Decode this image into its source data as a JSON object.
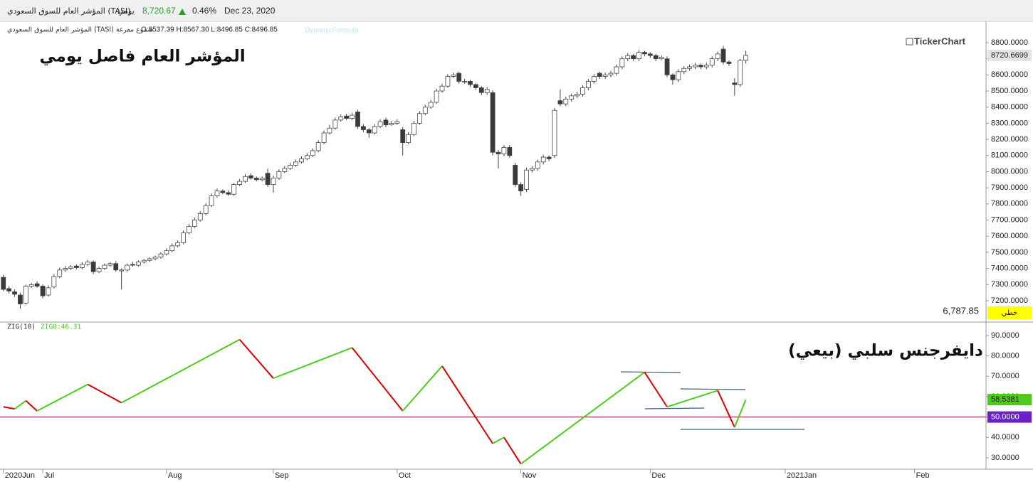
{
  "header": {
    "name": "المؤشر العام للسوق السعودي (TASI)",
    "period": "يومي",
    "price": "8,720.67",
    "change": "0.46%",
    "date": "Dec 23, 2020"
  },
  "legend_line": {
    "name": "المؤشر العام للسوق السعودي (TASI) شموع مفرغة",
    "ohlc": "O:8537.39 H:8567.30 L:8496.85 C:8496.85",
    "formula": "DynamicFormula"
  },
  "logo": "TickerChart",
  "chart_data": [
    {
      "type": "candlestick",
      "title": "المؤشر العام فاصل يومي",
      "min_label": "6,787.85",
      "scale_label": "خطي",
      "up_color": "#ffffff",
      "down_color": "#3a3a3a",
      "open": [
        7345,
        7275,
        7255,
        7235,
        7185,
        7290,
        7305,
        7290,
        7235,
        7285,
        7350,
        7390,
        7400,
        7415,
        7405,
        7425,
        7440,
        7380,
        7400,
        7420,
        7430,
        7385,
        7390,
        7425,
        7420,
        7440,
        7450,
        7460,
        7470,
        7490,
        7510,
        7540,
        7560,
        7620,
        7660,
        7700,
        7740,
        7790,
        7850,
        7880,
        7870,
        7860,
        7920,
        7940,
        7975,
        7960,
        7950,
        7990,
        7920,
        7960,
        8000,
        8020,
        8040,
        8060,
        8080,
        8100,
        8130,
        8180,
        8240,
        8270,
        8320,
        8345,
        8330,
        8370,
        8280,
        8260,
        8240,
        8280,
        8320,
        8290,
        8300,
        8260,
        8180,
        8230,
        8300,
        8360,
        8400,
        8430,
        8500,
        8530,
        8590,
        8610,
        8560,
        8560,
        8540,
        8520,
        8490,
        8490,
        8120,
        8110,
        8150,
        8040,
        7920,
        7890,
        8010,
        8020,
        8060,
        8090,
        8100,
        8440,
        8420,
        8450,
        8470,
        8480,
        8520,
        8560,
        8610,
        8590,
        8600,
        8610,
        8650,
        8700,
        8720,
        8700,
        8740,
        8730,
        8720,
        8700,
        8700,
        8600,
        8570,
        8620,
        8640,
        8650,
        8660,
        8650,
        8660,
        8700,
        8760,
        8680,
        8550,
        8540,
        8690
      ],
      "high": [
        7360,
        7290,
        7270,
        7250,
        7300,
        7310,
        7320,
        7300,
        7295,
        7365,
        7405,
        7415,
        7420,
        7425,
        7440,
        7455,
        7450,
        7410,
        7430,
        7440,
        7445,
        7400,
        7430,
        7440,
        7450,
        7460,
        7470,
        7480,
        7500,
        7525,
        7555,
        7575,
        7635,
        7675,
        7715,
        7755,
        7805,
        7865,
        7895,
        7890,
        7885,
        7930,
        7955,
        7985,
        7990,
        7970,
        7970,
        8020,
        7975,
        8015,
        8035,
        8055,
        8075,
        8095,
        8115,
        8145,
        8195,
        8255,
        8290,
        8335,
        8355,
        8360,
        8365,
        8385,
        8295,
        8270,
        8295,
        8325,
        8335,
        8315,
        8325,
        8275,
        8245,
        8315,
        8375,
        8415,
        8445,
        8515,
        8545,
        8605,
        8615,
        8620,
        8575,
        8570,
        8550,
        8530,
        8525,
        8505,
        8135,
        8165,
        8165,
        8055,
        7935,
        8025,
        8035,
        8075,
        8105,
        8100,
        8395,
        8510,
        8465,
        8485,
        8495,
        8535,
        8575,
        8605,
        8620,
        8615,
        8625,
        8665,
        8715,
        8735,
        8730,
        8755,
        8750,
        8740,
        8730,
        8720,
        8715,
        8610,
        8635,
        8655,
        8665,
        8675,
        8670,
        8675,
        8715,
        8745,
        8780,
        8690,
        8580,
        8700,
        8750
      ],
      "low": [
        7260,
        7245,
        7225,
        7150,
        7175,
        7280,
        7280,
        7215,
        7225,
        7275,
        7340,
        7380,
        7390,
        7395,
        7395,
        7415,
        7365,
        7370,
        7390,
        7410,
        7380,
        7270,
        7380,
        7410,
        7410,
        7430,
        7440,
        7450,
        7460,
        7480,
        7500,
        7530,
        7550,
        7610,
        7650,
        7690,
        7730,
        7780,
        7840,
        7860,
        7850,
        7850,
        7910,
        7930,
        7950,
        7940,
        7940,
        7905,
        7870,
        7950,
        7990,
        8010,
        8030,
        8050,
        8070,
        8090,
        8120,
        8170,
        8230,
        8260,
        8310,
        8320,
        8320,
        8265,
        8245,
        8210,
        8230,
        8270,
        8275,
        8285,
        8290,
        8100,
        8170,
        8220,
        8290,
        8350,
        8390,
        8420,
        8490,
        8520,
        8580,
        8545,
        8545,
        8525,
        8505,
        8475,
        8475,
        8100,
        8020,
        8095,
        8085,
        7905,
        7850,
        7875,
        7995,
        8005,
        8045,
        8065,
        8085,
        8405,
        8405,
        8435,
        8455,
        8465,
        8505,
        8545,
        8575,
        8575,
        8585,
        8595,
        8635,
        8685,
        8685,
        8685,
        8715,
        8705,
        8685,
        8690,
        8585,
        8540,
        8555,
        8605,
        8625,
        8635,
        8635,
        8635,
        8645,
        8685,
        8665,
        8655,
        8470,
        8525,
        8670
      ],
      "close": [
        7270,
        7260,
        7240,
        7180,
        7290,
        7300,
        7290,
        7230,
        7280,
        7350,
        7390,
        7400,
        7410,
        7405,
        7425,
        7440,
        7380,
        7400,
        7420,
        7430,
        7390,
        7390,
        7420,
        7420,
        7440,
        7450,
        7460,
        7470,
        7490,
        7510,
        7540,
        7560,
        7620,
        7660,
        7700,
        7740,
        7790,
        7850,
        7880,
        7870,
        7860,
        7920,
        7940,
        7970,
        7960,
        7950,
        7960,
        7920,
        7960,
        8000,
        8020,
        8040,
        8060,
        8080,
        8100,
        8130,
        8180,
        8240,
        8270,
        8320,
        8340,
        8330,
        8350,
        8280,
        8260,
        8240,
        8280,
        8310,
        8290,
        8300,
        8310,
        8180,
        8230,
        8300,
        8360,
        8400,
        8430,
        8500,
        8530,
        8590,
        8600,
        8560,
        8560,
        8540,
        8520,
        8490,
        8510,
        8120,
        8110,
        8150,
        8100,
        7920,
        7880,
        8010,
        8020,
        8060,
        8090,
        8080,
        8380,
        8420,
        8450,
        8470,
        8480,
        8520,
        8560,
        8590,
        8590,
        8600,
        8610,
        8650,
        8700,
        8720,
        8700,
        8740,
        8730,
        8720,
        8700,
        8710,
        8600,
        8570,
        8620,
        8640,
        8650,
        8660,
        8650,
        8660,
        8700,
        8730,
        8680,
        8670,
        8540,
        8690,
        8720.6699
      ],
      "xlim": [
        -0.6,
        174.7
      ],
      "ylim": [
        7072,
        8910
      ],
      "yticks": [
        {
          "value": 7200,
          "label": "7200.0000"
        },
        {
          "value": 7300,
          "label": "7300.0000"
        },
        {
          "value": 7400,
          "label": "7400.0000"
        },
        {
          "value": 7500,
          "label": "7500.0000"
        },
        {
          "value": 7600,
          "label": "7600.0000"
        },
        {
          "value": 7700,
          "label": "7700.0000"
        },
        {
          "value": 7800,
          "label": "7800.0000"
        },
        {
          "value": 7900,
          "label": "7900.0000"
        },
        {
          "value": 8000,
          "label": "8000.0000"
        },
        {
          "value": 8100,
          "label": "8100.0000"
        },
        {
          "value": 8200,
          "label": "8200.0000"
        },
        {
          "value": 8300,
          "label": "8300.0000"
        },
        {
          "value": 8400,
          "label": "8400.0000"
        },
        {
          "value": 8500,
          "label": "8500.0000"
        },
        {
          "value": 8600,
          "label": "8600.0000"
        },
        {
          "value": 8700,
          "label": "8700.0000"
        },
        {
          "value": 8800,
          "label": "8800.0000"
        }
      ]
    },
    {
      "type": "line",
      "title": "ZIG(10)",
      "value_label": "ZIG0:46.31",
      "annotation": "دايفرجنس سلبي (بيعي)",
      "up_color": "#4ccc1a",
      "down_color": "#dd0000",
      "x": [
        0,
        2,
        4,
        6,
        15,
        21,
        42,
        48,
        62,
        71,
        78,
        87,
        89,
        92,
        114,
        118,
        127,
        130,
        132
      ],
      "values": [
        55,
        54,
        58,
        53,
        66,
        57,
        88,
        69,
        84,
        53,
        75,
        37,
        40,
        27,
        72,
        55,
        63,
        45,
        58.5381
      ],
      "reference_line": {
        "value": 50,
        "label": "50.0000"
      },
      "reference_color": "#8b0040",
      "xlim": [
        -0.6,
        174.7
      ],
      "ylim": [
        24.4,
        95.9
      ],
      "yticks": [
        {
          "value": 30,
          "label": "30.0000"
        },
        {
          "value": 40,
          "label": "40.0000"
        },
        {
          "value": 50,
          "label": "50.0000"
        },
        {
          "value": 60,
          "label": "60.0000"
        },
        {
          "value": 70,
          "label": "70.0000"
        },
        {
          "value": 80,
          "label": "80.0000"
        },
        {
          "value": 90,
          "label": "90.0000"
        }
      ],
      "xticks": [
        {
          "value": 0,
          "label": "2020Jun"
        },
        {
          "value": 7,
          "label": "Jul"
        },
        {
          "value": 29,
          "label": "Aug"
        },
        {
          "value": 48,
          "label": "Sep"
        },
        {
          "value": 70,
          "label": "Oct"
        },
        {
          "value": 92,
          "label": "Nov"
        },
        {
          "value": 115,
          "label": "Dec"
        },
        {
          "value": 139,
          "label": "2021Jan"
        },
        {
          "value": 162,
          "label": "Feb"
        }
      ]
    }
  ]
}
